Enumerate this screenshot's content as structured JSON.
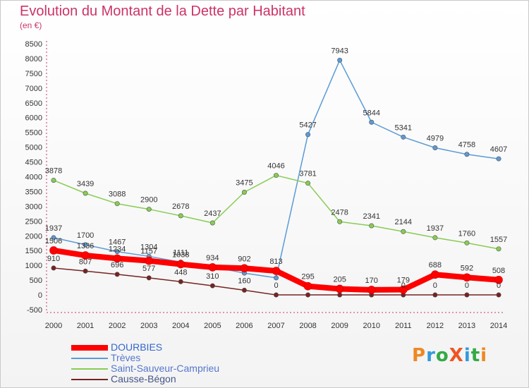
{
  "title": "Evolution du Montant de la Dette par Habitant",
  "subtitle": "(en €)",
  "logo": "ProXiti",
  "chart_data": {
    "type": "line",
    "x": [
      "2000",
      "2001",
      "2002",
      "2003",
      "2004",
      "2005",
      "2006",
      "2007",
      "2008",
      "2009",
      "2010",
      "2011",
      "2012",
      "2013",
      "2014"
    ],
    "ylim": [
      -500,
      8500
    ],
    "yticks": [
      -500,
      0,
      500,
      1000,
      1500,
      2000,
      2500,
      3000,
      3500,
      4000,
      4500,
      5000,
      5500,
      6000,
      6500,
      7000,
      7500,
      8000,
      8500
    ],
    "grid": false,
    "legend": "bottom-left",
    "series": [
      {
        "name": "Trèves",
        "color": "#5b9bd5",
        "values": [
          1937,
          1700,
          1467,
          1304,
          1111,
          950,
          738,
          578,
          5427,
          7943,
          5844,
          5341,
          4979,
          4758,
          4607
        ],
        "labels": [
          "1937",
          "1700",
          "1467",
          "1304",
          "1111",
          "",
          "",
          "",
          "5427",
          "7943",
          "5844",
          "5341",
          "4979",
          "4758",
          "4607"
        ]
      },
      {
        "name": "Saint-Sauveur-Camprieu",
        "color": "#88cc55",
        "values": [
          3878,
          3439,
          3088,
          2900,
          2678,
          2437,
          3475,
          4046,
          3781,
          2478,
          2341,
          2144,
          1937,
          1760,
          1557
        ],
        "labels": [
          "3878",
          "3439",
          "3088",
          "2900",
          "2678",
          "2437",
          "3475",
          "4046",
          "3781",
          "2478",
          "2341",
          "2144",
          "1937",
          "1760",
          "1557"
        ]
      },
      {
        "name": "Causse-Bégon",
        "color": "#772222",
        "values": [
          910,
          807,
          696,
          577,
          448,
          310,
          160,
          0,
          0,
          0,
          0,
          0,
          0,
          0,
          0
        ],
        "labels": [
          "910",
          "807",
          "696",
          "577",
          "448",
          "310",
          "160",
          "0",
          "",
          "",
          "",
          "0",
          "0",
          "0",
          "0"
        ]
      },
      {
        "name": "DOURBIES",
        "color": "#ff0000",
        "values": [
          1506,
          1336,
          1234,
          1157,
          1038,
          934,
          902,
          813,
          295,
          205,
          170,
          179,
          688,
          592,
          508
        ],
        "labels": [
          "1506",
          "1336",
          "1234",
          "1157",
          "1038",
          "934",
          "902",
          "813",
          "295",
          "205",
          "170",
          "179",
          "688",
          "592",
          "508"
        ]
      }
    ],
    "legend_order": [
      "DOURBIES",
      "Trèves",
      "Saint-Sauveur-Camprieu",
      "Causse-Bégon"
    ]
  }
}
